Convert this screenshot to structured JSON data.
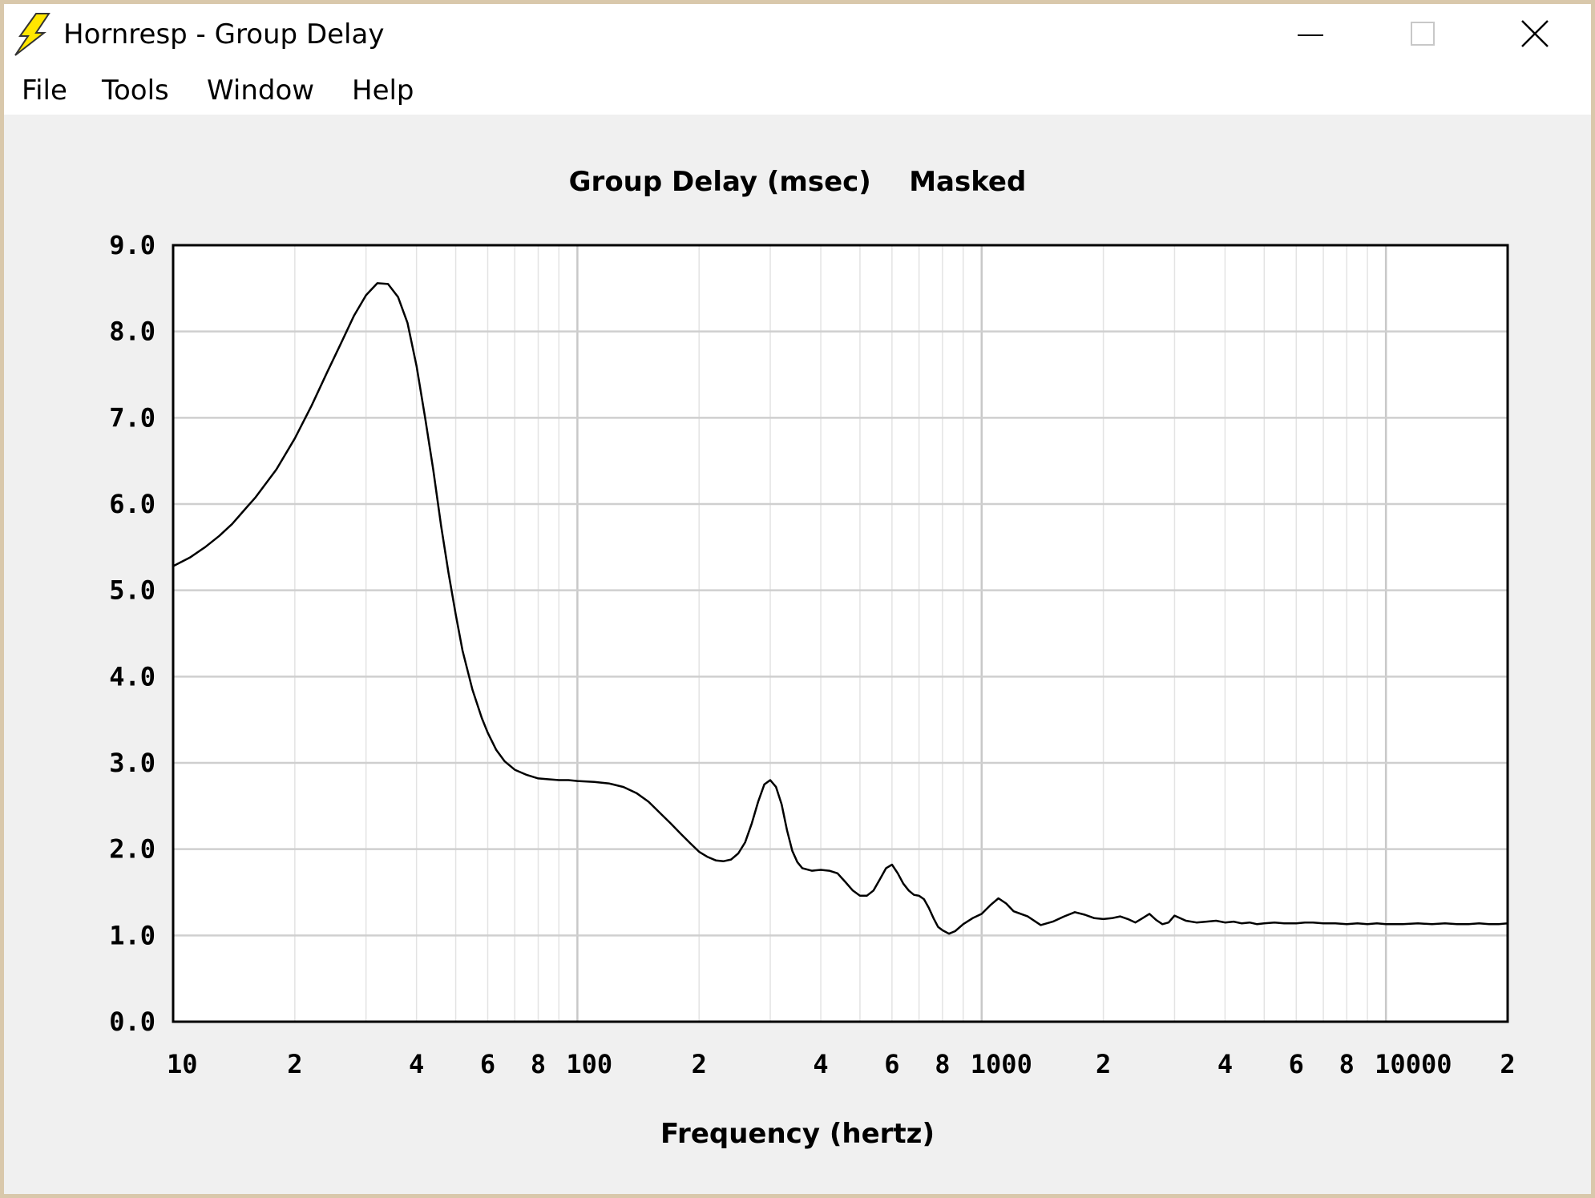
{
  "window": {
    "title": "Hornresp - Group Delay",
    "icon": "lightning-icon",
    "buttons": [
      "minimize-icon",
      "maximize-icon",
      "close-icon"
    ]
  },
  "menu": [
    "File",
    "Tools",
    "Window",
    "Help"
  ],
  "chart_data": {
    "type": "line",
    "title": "Group Delay (msec)",
    "subtitle": "Masked",
    "xlabel": "Frequency (hertz)",
    "ylabel": "",
    "x_scale": "log",
    "xlim": [
      10,
      20000
    ],
    "ylim": [
      0,
      9
    ],
    "grid": true,
    "x_ticks": [
      {
        "value": 10,
        "label": "10"
      },
      {
        "value": 20,
        "label": "2"
      },
      {
        "value": 40,
        "label": "4"
      },
      {
        "value": 60,
        "label": "6"
      },
      {
        "value": 80,
        "label": "8"
      },
      {
        "value": 100,
        "label": "100"
      },
      {
        "value": 200,
        "label": "2"
      },
      {
        "value": 400,
        "label": "4"
      },
      {
        "value": 600,
        "label": "6"
      },
      {
        "value": 800,
        "label": "8"
      },
      {
        "value": 1000,
        "label": "1000"
      },
      {
        "value": 2000,
        "label": "2"
      },
      {
        "value": 4000,
        "label": "4"
      },
      {
        "value": 6000,
        "label": "6"
      },
      {
        "value": 8000,
        "label": "8"
      },
      {
        "value": 10000,
        "label": "10000"
      },
      {
        "value": 20000,
        "label": "2"
      }
    ],
    "y_ticks": [
      {
        "value": 0,
        "label": "0.0"
      },
      {
        "value": 1,
        "label": "1.0"
      },
      {
        "value": 2,
        "label": "2.0"
      },
      {
        "value": 3,
        "label": "3.0"
      },
      {
        "value": 4,
        "label": "4.0"
      },
      {
        "value": 5,
        "label": "5.0"
      },
      {
        "value": 6,
        "label": "6.0"
      },
      {
        "value": 7,
        "label": "7.0"
      },
      {
        "value": 8,
        "label": "8.0"
      },
      {
        "value": 9,
        "label": "9.0"
      }
    ],
    "series": [
      {
        "color": "#000000",
        "x": [
          10,
          11,
          12,
          13,
          14,
          15,
          16,
          18,
          20,
          22,
          24,
          26,
          28,
          30,
          32,
          34,
          36,
          38,
          40,
          42,
          44,
          46,
          48,
          50,
          52,
          55,
          58,
          60,
          63,
          66,
          70,
          75,
          80,
          85,
          90,
          95,
          100,
          110,
          120,
          130,
          140,
          150,
          160,
          170,
          180,
          190,
          200,
          210,
          220,
          230,
          240,
          250,
          260,
          270,
          280,
          290,
          300,
          310,
          320,
          330,
          340,
          350,
          360,
          380,
          400,
          420,
          440,
          460,
          480,
          500,
          520,
          540,
          560,
          580,
          600,
          620,
          640,
          660,
          680,
          700,
          720,
          740,
          760,
          780,
          800,
          830,
          860,
          900,
          950,
          1000,
          1050,
          1100,
          1150,
          1200,
          1300,
          1400,
          1500,
          1600,
          1700,
          1800,
          1900,
          2000,
          2100,
          2200,
          2300,
          2400,
          2500,
          2600,
          2700,
          2800,
          2900,
          3000,
          3200,
          3400,
          3600,
          3800,
          4000,
          4200,
          4400,
          4600,
          4800,
          5000,
          5300,
          5600,
          6000,
          6300,
          6600,
          7000,
          7500,
          8000,
          8500,
          9000,
          9500,
          10000,
          11000,
          12000,
          13000,
          14000,
          15000,
          16000,
          17000,
          18000,
          19000,
          20000
        ],
        "y": [
          5.28,
          5.38,
          5.5,
          5.63,
          5.77,
          5.93,
          6.08,
          6.4,
          6.76,
          7.14,
          7.52,
          7.86,
          8.18,
          8.42,
          8.56,
          8.55,
          8.4,
          8.1,
          7.6,
          7.0,
          6.4,
          5.75,
          5.2,
          4.72,
          4.3,
          3.85,
          3.52,
          3.35,
          3.15,
          3.02,
          2.92,
          2.86,
          2.82,
          2.81,
          2.8,
          2.8,
          2.79,
          2.78,
          2.76,
          2.72,
          2.65,
          2.55,
          2.42,
          2.3,
          2.18,
          2.07,
          1.97,
          1.91,
          1.87,
          1.86,
          1.88,
          1.95,
          2.08,
          2.3,
          2.55,
          2.75,
          2.8,
          2.72,
          2.52,
          2.22,
          1.98,
          1.85,
          1.78,
          1.75,
          1.76,
          1.75,
          1.72,
          1.62,
          1.52,
          1.46,
          1.46,
          1.52,
          1.65,
          1.78,
          1.82,
          1.72,
          1.6,
          1.52,
          1.47,
          1.46,
          1.42,
          1.32,
          1.2,
          1.1,
          1.06,
          1.02,
          1.05,
          1.13,
          1.2,
          1.25,
          1.35,
          1.43,
          1.37,
          1.28,
          1.22,
          1.12,
          1.16,
          1.22,
          1.27,
          1.24,
          1.2,
          1.19,
          1.2,
          1.22,
          1.19,
          1.15,
          1.2,
          1.25,
          1.18,
          1.13,
          1.15,
          1.23,
          1.17,
          1.15,
          1.16,
          1.17,
          1.15,
          1.16,
          1.14,
          1.15,
          1.13,
          1.14,
          1.15,
          1.14,
          1.14,
          1.15,
          1.15,
          1.14,
          1.14,
          1.13,
          1.14,
          1.13,
          1.14,
          1.13,
          1.13,
          1.14,
          1.13,
          1.14,
          1.13,
          1.13,
          1.14,
          1.13,
          1.13,
          1.14
        ]
      }
    ]
  }
}
